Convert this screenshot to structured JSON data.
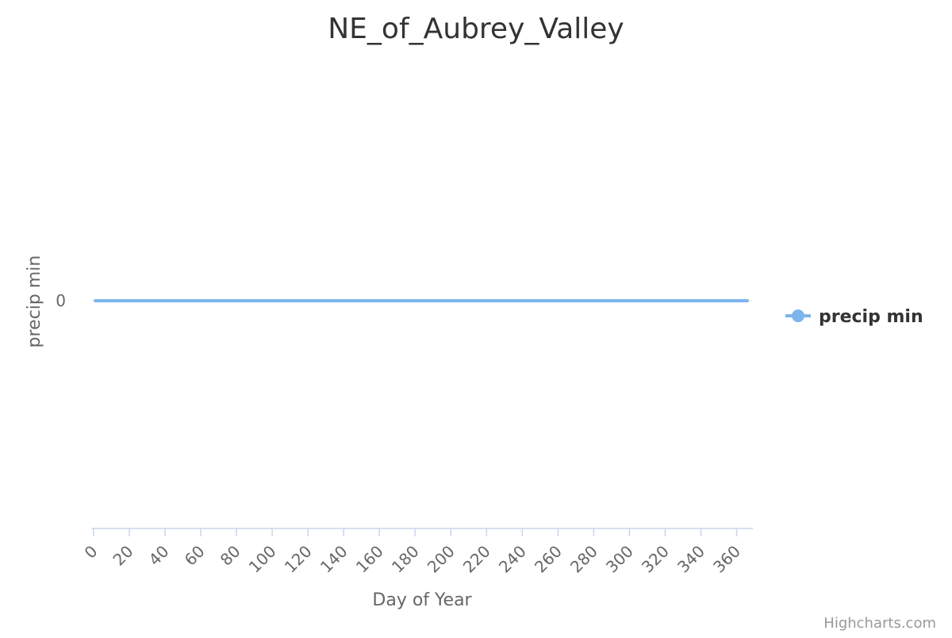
{
  "chart_data": {
    "type": "line",
    "title": "NE_of_Aubrey_Valley",
    "xlabel": "Day of Year",
    "ylabel": "precip min",
    "xlim": [
      0,
      366
    ],
    "xticks": [
      0,
      20,
      40,
      60,
      80,
      100,
      120,
      140,
      160,
      180,
      200,
      220,
      240,
      260,
      280,
      300,
      320,
      340,
      360
    ],
    "yticks": [
      0
    ],
    "grid": false,
    "legend_position": "right",
    "series": [
      {
        "name": "precip min",
        "color": "#7cb5ec",
        "x": [
          1,
          366
        ],
        "y": [
          0,
          0
        ]
      }
    ]
  },
  "credits": "Highcharts.com"
}
